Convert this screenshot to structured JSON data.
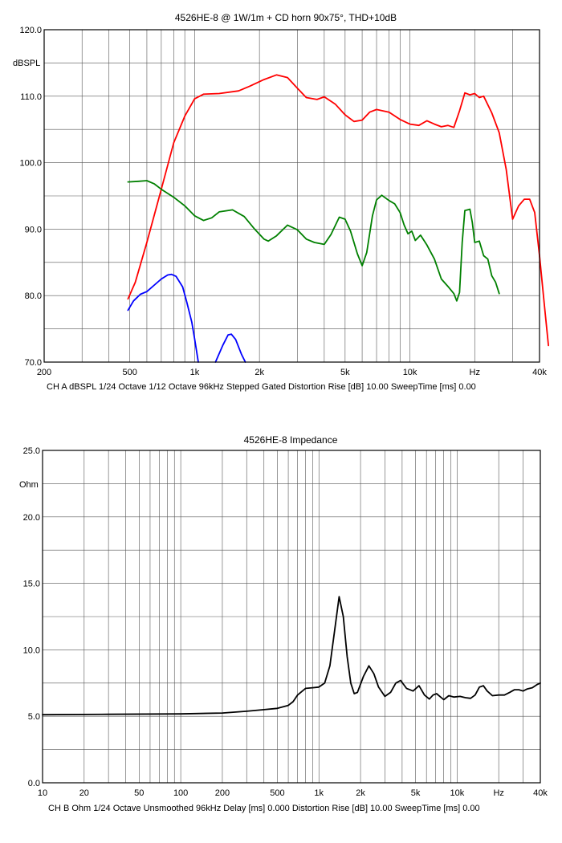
{
  "chart_data": [
    {
      "type": "line",
      "title": "4526HE-8 @ 1W/1m + CD horn 90x75°, THD+10dB",
      "ylabel": "dBSPL",
      "xscale": "log",
      "xlim": [
        200,
        40000
      ],
      "ylim": [
        70,
        120
      ],
      "grid": true,
      "y_ticks": [
        "70.0",
        "80.0",
        "90.0",
        "100.0",
        "110.0",
        "120.0"
      ],
      "x_ticks": [
        {
          "v": 200,
          "label": "200"
        },
        {
          "v": 500,
          "label": "500"
        },
        {
          "v": 1000,
          "label": "1k"
        },
        {
          "v": 2000,
          "label": "2k"
        },
        {
          "v": 5000,
          "label": "5k"
        },
        {
          "v": 10000,
          "label": "10k"
        },
        {
          "v": 20000,
          "label": "Hz"
        },
        {
          "v": 40000,
          "label": "40k"
        }
      ],
      "footer": "CH A   dBSPL   1/24 Octave   1/12 Octave   96kHz   Stepped   Gated   Distortion Rise [dB] 10.00   SweepTime [ms] 0.00",
      "series": [
        {
          "color": "#ff0000",
          "points": [
            [
              490,
              79.5
            ],
            [
              530,
              82
            ],
            [
              600,
              88
            ],
            [
              700,
              96
            ],
            [
              800,
              103
            ],
            [
              900,
              107
            ],
            [
              1000,
              109.6
            ],
            [
              1100,
              110.3
            ],
            [
              1300,
              110.4
            ],
            [
              1600,
              110.8
            ],
            [
              1800,
              111.5
            ],
            [
              2100,
              112.5
            ],
            [
              2400,
              113.2
            ],
            [
              2700,
              112.8
            ],
            [
              3000,
              111.2
            ],
            [
              3300,
              109.8
            ],
            [
              3700,
              109.5
            ],
            [
              4000,
              109.9
            ],
            [
              4500,
              108.8
            ],
            [
              5000,
              107.2
            ],
            [
              5500,
              106.2
            ],
            [
              6000,
              106.4
            ],
            [
              6500,
              107.6
            ],
            [
              7000,
              108
            ],
            [
              8000,
              107.6
            ],
            [
              9000,
              106.5
            ],
            [
              10000,
              105.8
            ],
            [
              11000,
              105.6
            ],
            [
              12000,
              106.3
            ],
            [
              13000,
              105.8
            ],
            [
              14000,
              105.4
            ],
            [
              15000,
              105.6
            ],
            [
              16000,
              105.3
            ],
            [
              17000,
              107.8
            ],
            [
              18000,
              110.5
            ],
            [
              19000,
              110.2
            ],
            [
              20000,
              110.4
            ],
            [
              21000,
              109.8
            ],
            [
              22000,
              110
            ],
            [
              24000,
              107.5
            ],
            [
              26000,
              104.5
            ],
            [
              28000,
              99
            ],
            [
              30000,
              91.5
            ],
            [
              32000,
              93.5
            ],
            [
              34000,
              94.5
            ],
            [
              36000,
              94.5
            ],
            [
              38000,
              92.5
            ],
            [
              40000,
              86
            ],
            [
              42000,
              79
            ],
            [
              44000,
              72.5
            ]
          ]
        },
        {
          "color": "#008000",
          "points": [
            [
              490,
              97.1
            ],
            [
              550,
              97.2
            ],
            [
              600,
              97.3
            ],
            [
              650,
              96.8
            ],
            [
              700,
              96
            ],
            [
              800,
              94.8
            ],
            [
              900,
              93.5
            ],
            [
              1000,
              92
            ],
            [
              1100,
              91.3
            ],
            [
              1200,
              91.7
            ],
            [
              1300,
              92.6
            ],
            [
              1500,
              92.9
            ],
            [
              1700,
              91.9
            ],
            [
              1900,
              90
            ],
            [
              2100,
              88.5
            ],
            [
              2200,
              88.2
            ],
            [
              2400,
              89
            ],
            [
              2700,
              90.6
            ],
            [
              3000,
              89.9
            ],
            [
              3300,
              88.5
            ],
            [
              3600,
              88
            ],
            [
              4000,
              87.7
            ],
            [
              4300,
              89.2
            ],
            [
              4700,
              91.8
            ],
            [
              5000,
              91.5
            ],
            [
              5300,
              89.7
            ],
            [
              5700,
              86.3
            ],
            [
              6000,
              84.5
            ],
            [
              6300,
              86.5
            ],
            [
              6700,
              92
            ],
            [
              7000,
              94.4
            ],
            [
              7400,
              95.1
            ],
            [
              8000,
              94.3
            ],
            [
              8500,
              93.8
            ],
            [
              9000,
              92.5
            ],
            [
              9400,
              90.6
            ],
            [
              9800,
              89.3
            ],
            [
              10200,
              89.7
            ],
            [
              10600,
              88.3
            ],
            [
              11200,
              89.1
            ],
            [
              12000,
              87.6
            ],
            [
              13000,
              85.5
            ],
            [
              14000,
              82.5
            ],
            [
              15000,
              81.4
            ],
            [
              16000,
              80.3
            ],
            [
              16500,
              79.2
            ],
            [
              17000,
              80.5
            ],
            [
              17500,
              88
            ],
            [
              18000,
              92.8
            ],
            [
              19000,
              93
            ],
            [
              19500,
              91
            ],
            [
              20000,
              88
            ],
            [
              21000,
              88.2
            ],
            [
              22000,
              86
            ],
            [
              23000,
              85.5
            ],
            [
              24000,
              83
            ],
            [
              25000,
              82
            ],
            [
              26000,
              80.3
            ]
          ]
        },
        {
          "color": "#0000ff",
          "points": [
            [
              490,
              77.8
            ],
            [
              520,
              79.2
            ],
            [
              560,
              80.2
            ],
            [
              600,
              80.6
            ],
            [
              650,
              81.6
            ],
            [
              700,
              82.5
            ],
            [
              750,
              83.1
            ],
            [
              780,
              83.2
            ],
            [
              820,
              82.9
            ],
            [
              880,
              81.3
            ],
            [
              920,
              79
            ],
            [
              970,
              76
            ],
            [
              1000,
              73.5
            ],
            [
              1040,
              70
            ]
          ]
        },
        {
          "color": "#0000ff",
          "points": [
            [
              1250,
              70
            ],
            [
              1350,
              72.5
            ],
            [
              1430,
              74.1
            ],
            [
              1480,
              74.2
            ],
            [
              1550,
              73.4
            ],
            [
              1650,
              71.2
            ],
            [
              1720,
              70
            ]
          ]
        }
      ]
    },
    {
      "type": "line",
      "title": "4526HE-8 Impedance",
      "ylabel": "Ohm",
      "xscale": "log",
      "xlim": [
        10,
        40000
      ],
      "ylim": [
        0,
        25
      ],
      "grid": true,
      "y_ticks": [
        "0.0",
        "5.0",
        "10.0",
        "15.0",
        "20.0",
        "25.0"
      ],
      "x_ticks": [
        {
          "v": 10,
          "label": "10"
        },
        {
          "v": 20,
          "label": "20"
        },
        {
          "v": 50,
          "label": "50"
        },
        {
          "v": 100,
          "label": "100"
        },
        {
          "v": 200,
          "label": "200"
        },
        {
          "v": 500,
          "label": "500"
        },
        {
          "v": 1000,
          "label": "1k"
        },
        {
          "v": 2000,
          "label": "2k"
        },
        {
          "v": 5000,
          "label": "5k"
        },
        {
          "v": 10000,
          "label": "10k"
        },
        {
          "v": 20000,
          "label": "Hz"
        },
        {
          "v": 40000,
          "label": "40k"
        }
      ],
      "footer": "CH B   Ohm   1/24 Octave   Unsmoothed   96kHz   Delay [ms] 0.000   Distortion Rise [dB] 10.00   SweepTime [ms] 0.00",
      "series": [
        {
          "color": "#000000",
          "points": [
            [
              10,
              5.12
            ],
            [
              30,
              5.15
            ],
            [
              100,
              5.18
            ],
            [
              200,
              5.25
            ],
            [
              300,
              5.38
            ],
            [
              400,
              5.5
            ],
            [
              500,
              5.6
            ],
            [
              600,
              5.82
            ],
            [
              650,
              6.1
            ],
            [
              700,
              6.6
            ],
            [
              800,
              7.1
            ],
            [
              900,
              7.15
            ],
            [
              1000,
              7.2
            ],
            [
              1100,
              7.5
            ],
            [
              1200,
              8.8
            ],
            [
              1300,
              11.5
            ],
            [
              1400,
              14
            ],
            [
              1500,
              12.5
            ],
            [
              1600,
              9.5
            ],
            [
              1700,
              7.5
            ],
            [
              1800,
              6.7
            ],
            [
              1900,
              6.8
            ],
            [
              2100,
              8
            ],
            [
              2300,
              8.8
            ],
            [
              2500,
              8.2
            ],
            [
              2700,
              7.2
            ],
            [
              3000,
              6.5
            ],
            [
              3300,
              6.8
            ],
            [
              3600,
              7.5
            ],
            [
              3900,
              7.7
            ],
            [
              4300,
              7.1
            ],
            [
              4800,
              6.9
            ],
            [
              5300,
              7.3
            ],
            [
              5800,
              6.6
            ],
            [
              6300,
              6.3
            ],
            [
              6700,
              6.6
            ],
            [
              7100,
              6.7
            ],
            [
              7500,
              6.5
            ],
            [
              8000,
              6.25
            ],
            [
              8700,
              6.55
            ],
            [
              9500,
              6.45
            ],
            [
              10500,
              6.5
            ],
            [
              11500,
              6.4
            ],
            [
              12500,
              6.35
            ],
            [
              13500,
              6.6
            ],
            [
              14500,
              7.2
            ],
            [
              15500,
              7.3
            ],
            [
              16500,
              6.9
            ],
            [
              18000,
              6.55
            ],
            [
              20000,
              6.6
            ],
            [
              22000,
              6.6
            ],
            [
              24000,
              6.8
            ],
            [
              26000,
              7
            ],
            [
              28000,
              7
            ],
            [
              30000,
              6.9
            ],
            [
              32000,
              7.05
            ],
            [
              35000,
              7.15
            ],
            [
              38000,
              7.4
            ],
            [
              40000,
              7.5
            ]
          ]
        }
      ]
    }
  ]
}
